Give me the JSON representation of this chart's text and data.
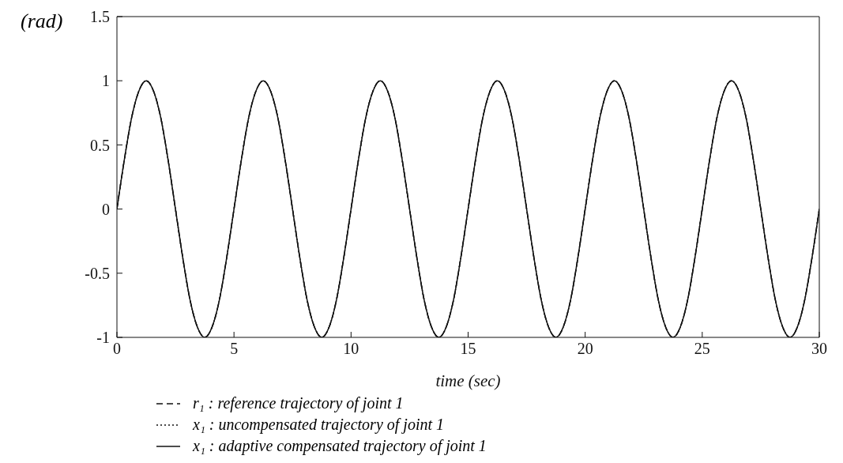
{
  "chart_data": {
    "type": "line",
    "xlabel": "time (sec)",
    "ylabel": "(rad)",
    "xlim": [
      0,
      30
    ],
    "xticks": [
      0,
      5,
      10,
      15,
      20,
      25,
      30
    ],
    "ylim": [
      -1,
      1.5
    ],
    "yticks": [
      -1,
      -0.5,
      0,
      0.5,
      1,
      1.5
    ],
    "grid": false,
    "legend": "bottom",
    "marker": "none",
    "x": [
      0,
      0.3125,
      0.625,
      0.9375,
      1.25,
      1.5625,
      1.875,
      2.1875,
      2.5,
      2.8125,
      3.125,
      3.4375,
      3.75,
      4.0625,
      4.375,
      4.6875,
      5,
      5.3125,
      5.625,
      5.9375,
      6.25,
      6.5625,
      6.875,
      7.1875,
      7.5,
      7.8125,
      8.125,
      8.4375,
      8.75,
      9.0625,
      9.375,
      9.6875,
      10,
      10.3125,
      10.625,
      10.9375,
      11.25,
      11.5625,
      11.875,
      12.1875,
      12.5,
      12.8125,
      13.125,
      13.4375,
      13.75,
      14.0625,
      14.375,
      14.6875,
      15,
      15.3125,
      15.625,
      15.9375,
      16.25,
      16.5625,
      16.875,
      17.1875,
      17.5,
      17.8125,
      18.125,
      18.4375,
      18.75,
      19.0625,
      19.375,
      19.6875,
      20,
      20.3125,
      20.625,
      20.9375,
      21.25,
      21.5625,
      21.875,
      22.1875,
      22.5,
      22.8125,
      23.125,
      23.4375,
      23.75,
      24.0625,
      24.375,
      24.6875,
      25,
      25.3125,
      25.625,
      25.9375,
      26.25,
      26.5625,
      26.875,
      27.1875,
      27.5,
      27.8125,
      28.125,
      28.4375,
      28.75,
      29.0625,
      29.375,
      29.6875,
      30
    ],
    "series": [
      {
        "name": "r₁ : reference trajectory  of  joint 1",
        "color": "#111111",
        "line_style": "dashed",
        "values": [
          0,
          0.38,
          0.71,
          0.92,
          1,
          0.92,
          0.71,
          0.38,
          0,
          -0.38,
          -0.71,
          -0.92,
          -1,
          -0.92,
          -0.71,
          -0.38,
          0,
          0.38,
          0.71,
          0.92,
          1,
          0.92,
          0.71,
          0.38,
          0,
          -0.38,
          -0.71,
          -0.92,
          -1,
          -0.92,
          -0.71,
          -0.38,
          0,
          0.38,
          0.71,
          0.92,
          1,
          0.92,
          0.71,
          0.38,
          0,
          -0.38,
          -0.71,
          -0.92,
          -1,
          -0.92,
          -0.71,
          -0.38,
          0,
          0.38,
          0.71,
          0.92,
          1,
          0.92,
          0.71,
          0.38,
          0,
          -0.38,
          -0.71,
          -0.92,
          -1,
          -0.92,
          -0.71,
          -0.38,
          0,
          0.38,
          0.71,
          0.92,
          1,
          0.92,
          0.71,
          0.38,
          0,
          -0.38,
          -0.71,
          -0.92,
          -1,
          -0.92,
          -0.71,
          -0.38,
          0,
          0.38,
          0.71,
          0.92,
          1,
          0.92,
          0.71,
          0.38,
          0,
          -0.38,
          -0.71,
          -0.92,
          -1,
          -0.92,
          -0.71,
          -0.38,
          0
        ]
      },
      {
        "name": "x₁ : uncompensated trajectory  of   joint 1",
        "color": "#111111",
        "line_style": "dotted",
        "values": [
          0,
          0.38,
          0.71,
          0.92,
          1,
          0.92,
          0.71,
          0.38,
          0,
          -0.38,
          -0.71,
          -0.92,
          -1,
          -0.92,
          -0.71,
          -0.38,
          0,
          0.38,
          0.71,
          0.92,
          1,
          0.92,
          0.71,
          0.38,
          0,
          -0.38,
          -0.71,
          -0.92,
          -1,
          -0.92,
          -0.71,
          -0.38,
          0,
          0.38,
          0.71,
          0.92,
          1,
          0.92,
          0.71,
          0.38,
          0,
          -0.38,
          -0.71,
          -0.92,
          -1,
          -0.92,
          -0.71,
          -0.38,
          0,
          0.38,
          0.71,
          0.92,
          1,
          0.92,
          0.71,
          0.38,
          0,
          -0.38,
          -0.71,
          -0.92,
          -1,
          -0.92,
          -0.71,
          -0.38,
          0,
          0.38,
          0.71,
          0.92,
          1,
          0.92,
          0.71,
          0.38,
          0,
          -0.38,
          -0.71,
          -0.92,
          -1,
          -0.92,
          -0.71,
          -0.38,
          0,
          0.38,
          0.71,
          0.92,
          1,
          0.92,
          0.71,
          0.38,
          0,
          -0.38,
          -0.71,
          -0.92,
          -1,
          -0.92,
          -0.71,
          -0.38,
          0
        ]
      },
      {
        "name": "x₁ : adaptive compensated trajectory  of  joint 1",
        "color": "#111111",
        "line_style": "solid",
        "values": [
          0,
          0.38,
          0.71,
          0.92,
          1,
          0.92,
          0.71,
          0.38,
          0,
          -0.38,
          -0.71,
          -0.92,
          -1,
          -0.92,
          -0.71,
          -0.38,
          0,
          0.38,
          0.71,
          0.92,
          1,
          0.92,
          0.71,
          0.38,
          0,
          -0.38,
          -0.71,
          -0.92,
          -1,
          -0.92,
          -0.71,
          -0.38,
          0,
          0.38,
          0.71,
          0.92,
          1,
          0.92,
          0.71,
          0.38,
          0,
          -0.38,
          -0.71,
          -0.92,
          -1,
          -0.92,
          -0.71,
          -0.38,
          0,
          0.38,
          0.71,
          0.92,
          1,
          0.92,
          0.71,
          0.38,
          0,
          -0.38,
          -0.71,
          -0.92,
          -1,
          -0.92,
          -0.71,
          -0.38,
          0,
          0.38,
          0.71,
          0.92,
          1,
          0.92,
          0.71,
          0.38,
          0,
          -0.38,
          -0.71,
          -0.92,
          -1,
          -0.92,
          -0.71,
          -0.38,
          0,
          0.38,
          0.71,
          0.92,
          1,
          0.92,
          0.71,
          0.38,
          0,
          -0.38,
          -0.71,
          -0.92,
          -1,
          -0.92,
          -0.71,
          -0.38,
          0
        ]
      }
    ]
  }
}
